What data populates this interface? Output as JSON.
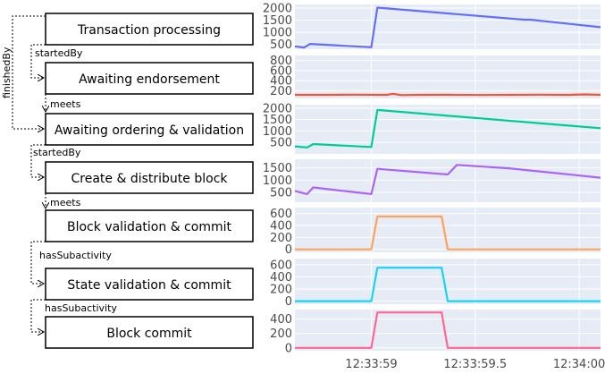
{
  "diagram": {
    "activities": [
      "Transaction processing",
      "Awaiting endorsement",
      "Awaiting ordering & validation",
      "Create & distribute block",
      "Block validation & commit",
      "State validation & commit",
      "Block commit"
    ],
    "relations": {
      "finished_by": "finishedBy",
      "started_by_1": "startedBy",
      "meets_1": "meets",
      "started_by_2": "startedBy",
      "meets_2": "meets",
      "has_subactivity_1": "hasSubactivity",
      "has_subactivity_2": "hasSubactivity"
    }
  },
  "chart_data": [
    {
      "type": "line",
      "color": "#636efa",
      "yticks": [
        500,
        1000,
        1500,
        2000
      ],
      "ylim": [
        300,
        2150
      ],
      "x": [
        0,
        0.03,
        0.05,
        0.25,
        0.27,
        0.75,
        0.77,
        1.0
      ],
      "values": [
        420,
        370,
        520,
        380,
        2020,
        1520,
        1520,
        1210
      ]
    },
    {
      "type": "line",
      "color": "#ef553b",
      "yticks": [
        200,
        400,
        600,
        800
      ],
      "ylim": [
        50,
        900
      ],
      "x": [
        0,
        0.1,
        0.2,
        0.3,
        0.32,
        0.35,
        0.4,
        0.5,
        0.6,
        0.7,
        0.8,
        0.9,
        0.95,
        1.0
      ],
      "values": [
        120,
        120,
        125,
        120,
        140,
        115,
        120,
        122,
        118,
        120,
        125,
        120,
        130,
        120
      ]
    },
    {
      "type": "line",
      "color": "#00cc96",
      "yticks": [
        500,
        1000,
        1500,
        2000
      ],
      "ylim": [
        0,
        2150
      ],
      "x": [
        0,
        0.04,
        0.06,
        0.25,
        0.27,
        1.0
      ],
      "values": [
        330,
        280,
        430,
        300,
        1920,
        1120
      ]
    },
    {
      "type": "line",
      "color": "#ab63fa",
      "yticks": [
        500,
        1000,
        1500
      ],
      "ylim": [
        100,
        1850
      ],
      "x": [
        0,
        0.04,
        0.06,
        0.25,
        0.27,
        0.5,
        0.53,
        0.7,
        1.0
      ],
      "values": [
        560,
        430,
        700,
        430,
        1460,
        1230,
        1620,
        1480,
        1100
      ]
    },
    {
      "type": "line",
      "color": "#ffa15a",
      "yticks": [
        0,
        200,
        400,
        600
      ],
      "ylim": [
        -50,
        700
      ],
      "x": [
        0,
        0.25,
        0.27,
        0.48,
        0.5,
        1.0
      ],
      "values": [
        0,
        0,
        550,
        550,
        0,
        0
      ]
    },
    {
      "type": "line",
      "color": "#19d3f3",
      "yticks": [
        0,
        200,
        400,
        600
      ],
      "ylim": [
        -50,
        700
      ],
      "x": [
        0,
        0.25,
        0.27,
        0.48,
        0.5,
        1.0
      ],
      "values": [
        0,
        0,
        550,
        550,
        0,
        0
      ]
    },
    {
      "type": "line",
      "color": "#ff6692",
      "yticks": [
        0,
        200,
        400
      ],
      "ylim": [
        -40,
        530
      ],
      "x": [
        0,
        0.25,
        0.27,
        0.48,
        0.5,
        1.0
      ],
      "values": [
        0,
        0,
        490,
        490,
        0,
        0
      ]
    }
  ],
  "x_axis": {
    "ticks": [
      {
        "pos": 0.25,
        "label": "12:33:59"
      },
      {
        "pos": 0.59,
        "label": "12:33:59.5"
      },
      {
        "pos": 0.93,
        "label": "12:34:00"
      }
    ]
  },
  "colors": {
    "plot_bg": "#e5ecf6",
    "grid": "#ffffff",
    "tick_text": "#4a4a4a"
  }
}
